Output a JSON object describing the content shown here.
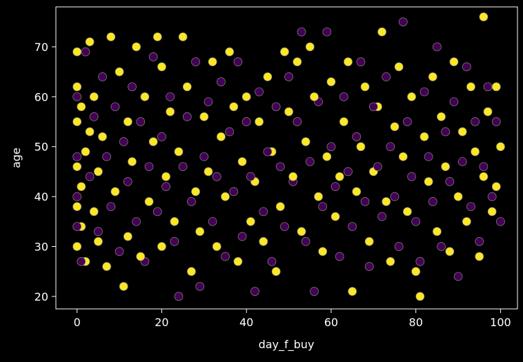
{
  "chart_data": {
    "type": "scatter",
    "title": "",
    "xlabel": "day_f_buy",
    "ylabel": "age",
    "xlim": [
      -5,
      104
    ],
    "ylim": [
      17.5,
      78
    ],
    "x_ticks": [
      0,
      20,
      40,
      60,
      80,
      100
    ],
    "y_ticks": [
      20,
      30,
      40,
      50,
      60,
      70
    ],
    "grid": false,
    "legend": "none",
    "colors": {
      "background": "#000000",
      "axes": "#ffffff",
      "text": "#ffffff",
      "marker_edge": "#8a8a8a"
    },
    "series": [
      {
        "color": "#fde725",
        "points": [
          [
            0,
            69
          ],
          [
            0,
            62
          ],
          [
            0,
            55
          ],
          [
            0,
            46
          ],
          [
            0,
            38
          ],
          [
            0,
            30
          ],
          [
            1,
            58
          ],
          [
            1,
            42
          ],
          [
            1,
            34
          ],
          [
            2,
            27
          ],
          [
            2,
            49
          ],
          [
            3,
            71
          ],
          [
            3,
            53
          ],
          [
            4,
            60
          ],
          [
            4,
            37
          ],
          [
            5,
            31
          ],
          [
            5,
            45
          ],
          [
            6,
            52
          ],
          [
            7,
            26
          ],
          [
            8,
            72
          ],
          [
            9,
            41
          ],
          [
            10,
            65
          ],
          [
            11,
            22
          ],
          [
            12,
            55
          ],
          [
            12,
            32
          ],
          [
            13,
            47
          ],
          [
            14,
            70
          ],
          [
            15,
            28
          ],
          [
            16,
            60
          ],
          [
            17,
            39
          ],
          [
            18,
            51
          ],
          [
            19,
            72
          ],
          [
            20,
            30
          ],
          [
            20,
            66
          ],
          [
            21,
            44
          ],
          [
            22,
            57
          ],
          [
            23,
            35
          ],
          [
            24,
            49
          ],
          [
            25,
            72
          ],
          [
            26,
            62
          ],
          [
            27,
            25
          ],
          [
            28,
            41
          ],
          [
            29,
            33
          ],
          [
            30,
            56
          ],
          [
            31,
            45
          ],
          [
            32,
            67
          ],
          [
            33,
            30
          ],
          [
            34,
            52
          ],
          [
            35,
            40
          ],
          [
            36,
            69
          ],
          [
            37,
            58
          ],
          [
            38,
            27
          ],
          [
            39,
            47
          ],
          [
            40,
            60
          ],
          [
            41,
            35
          ],
          [
            42,
            43
          ],
          [
            43,
            55
          ],
          [
            44,
            31
          ],
          [
            45,
            64
          ],
          [
            46,
            49
          ],
          [
            47,
            25
          ],
          [
            48,
            38
          ],
          [
            49,
            69
          ],
          [
            50,
            57
          ],
          [
            51,
            44
          ],
          [
            52,
            67
          ],
          [
            53,
            33
          ],
          [
            54,
            51
          ],
          [
            55,
            70
          ],
          [
            56,
            60
          ],
          [
            57,
            40
          ],
          [
            58,
            29
          ],
          [
            59,
            48
          ],
          [
            60,
            63
          ],
          [
            61,
            36
          ],
          [
            62,
            44
          ],
          [
            63,
            55
          ],
          [
            64,
            67
          ],
          [
            65,
            21
          ],
          [
            66,
            41
          ],
          [
            67,
            50
          ],
          [
            68,
            62
          ],
          [
            69,
            31
          ],
          [
            70,
            45
          ],
          [
            71,
            58
          ],
          [
            72,
            73
          ],
          [
            73,
            39
          ],
          [
            74,
            27
          ],
          [
            75,
            54
          ],
          [
            76,
            66
          ],
          [
            77,
            48
          ],
          [
            78,
            37
          ],
          [
            79,
            60
          ],
          [
            80,
            25
          ],
          [
            81,
            20
          ],
          [
            82,
            52
          ],
          [
            83,
            43
          ],
          [
            84,
            64
          ],
          [
            85,
            33
          ],
          [
            86,
            56
          ],
          [
            87,
            46
          ],
          [
            88,
            29
          ],
          [
            89,
            67
          ],
          [
            90,
            40
          ],
          [
            91,
            53
          ],
          [
            92,
            35
          ],
          [
            93,
            62
          ],
          [
            94,
            49
          ],
          [
            95,
            28
          ],
          [
            96,
            76
          ],
          [
            96,
            44
          ],
          [
            97,
            57
          ],
          [
            98,
            37
          ],
          [
            99,
            62
          ],
          [
            99,
            42
          ],
          [
            100,
            50
          ]
        ]
      },
      {
        "color": "#440154",
        "points": [
          [
            0,
            60
          ],
          [
            0,
            48
          ],
          [
            0,
            40
          ],
          [
            0,
            34
          ],
          [
            1,
            27
          ],
          [
            2,
            69
          ],
          [
            3,
            44
          ],
          [
            4,
            56
          ],
          [
            5,
            33
          ],
          [
            6,
            64
          ],
          [
            7,
            48
          ],
          [
            8,
            38
          ],
          [
            9,
            58
          ],
          [
            10,
            29
          ],
          [
            11,
            51
          ],
          [
            12,
            43
          ],
          [
            13,
            62
          ],
          [
            14,
            35
          ],
          [
            15,
            55
          ],
          [
            16,
            27
          ],
          [
            17,
            46
          ],
          [
            18,
            68
          ],
          [
            19,
            37
          ],
          [
            20,
            52
          ],
          [
            21,
            42
          ],
          [
            22,
            60
          ],
          [
            23,
            31
          ],
          [
            24,
            20
          ],
          [
            25,
            46
          ],
          [
            26,
            56
          ],
          [
            27,
            39
          ],
          [
            28,
            67
          ],
          [
            29,
            22
          ],
          [
            30,
            48
          ],
          [
            31,
            59
          ],
          [
            32,
            35
          ],
          [
            33,
            44
          ],
          [
            34,
            63
          ],
          [
            35,
            28
          ],
          [
            36,
            53
          ],
          [
            37,
            41
          ],
          [
            38,
            67
          ],
          [
            39,
            32
          ],
          [
            40,
            55
          ],
          [
            41,
            44
          ],
          [
            42,
            21
          ],
          [
            43,
            61
          ],
          [
            44,
            37
          ],
          [
            45,
            49
          ],
          [
            46,
            27
          ],
          [
            47,
            58
          ],
          [
            48,
            46
          ],
          [
            49,
            34
          ],
          [
            50,
            64
          ],
          [
            51,
            43
          ],
          [
            52,
            55
          ],
          [
            53,
            73
          ],
          [
            54,
            31
          ],
          [
            55,
            47
          ],
          [
            56,
            21
          ],
          [
            57,
            59
          ],
          [
            58,
            38
          ],
          [
            59,
            73
          ],
          [
            60,
            50
          ],
          [
            61,
            42
          ],
          [
            62,
            28
          ],
          [
            63,
            60
          ],
          [
            64,
            45
          ],
          [
            65,
            34
          ],
          [
            66,
            52
          ],
          [
            67,
            67
          ],
          [
            68,
            39
          ],
          [
            69,
            26
          ],
          [
            70,
            58
          ],
          [
            71,
            46
          ],
          [
            72,
            36
          ],
          [
            73,
            64
          ],
          [
            74,
            50
          ],
          [
            75,
            40
          ],
          [
            76,
            30
          ],
          [
            77,
            75
          ],
          [
            78,
            55
          ],
          [
            79,
            44
          ],
          [
            80,
            35
          ],
          [
            81,
            27
          ],
          [
            82,
            61
          ],
          [
            83,
            48
          ],
          [
            84,
            39
          ],
          [
            85,
            70
          ],
          [
            86,
            30
          ],
          [
            87,
            53
          ],
          [
            88,
            43
          ],
          [
            89,
            59
          ],
          [
            90,
            24
          ],
          [
            91,
            47
          ],
          [
            92,
            66
          ],
          [
            93,
            38
          ],
          [
            94,
            55
          ],
          [
            95,
            31
          ],
          [
            96,
            46
          ],
          [
            97,
            62
          ],
          [
            98,
            40
          ],
          [
            99,
            55
          ],
          [
            100,
            35
          ]
        ]
      }
    ]
  }
}
